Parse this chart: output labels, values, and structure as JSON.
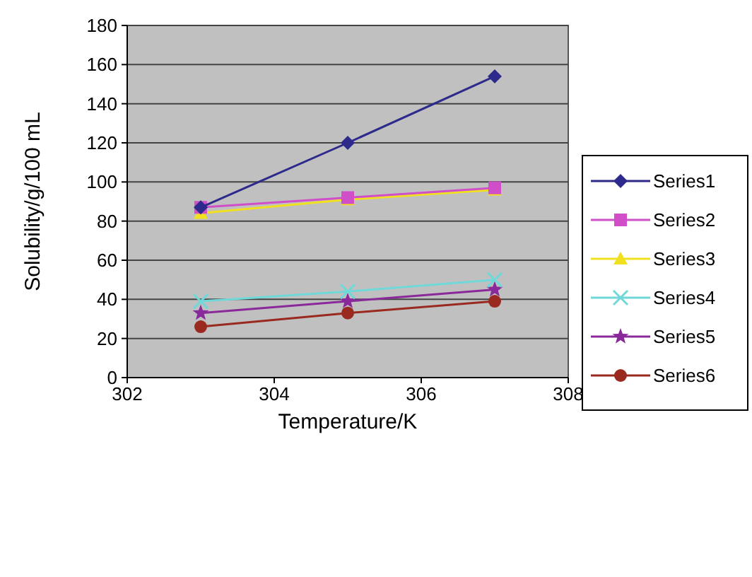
{
  "chart_data": {
    "type": "line",
    "xlabel": "Temperature/K",
    "ylabel": "Solubility/g/100 mL",
    "x": [
      303,
      305,
      307
    ],
    "xlim": [
      302,
      308
    ],
    "xticks": [
      302,
      304,
      306,
      308
    ],
    "ylim": [
      0,
      180
    ],
    "yticks": [
      0,
      20,
      40,
      60,
      80,
      100,
      120,
      140,
      160,
      180
    ],
    "grid": "y",
    "legend": "right",
    "series": [
      {
        "name": "Series1",
        "color": "#2e2a8c",
        "marker": "diamond",
        "values": [
          87,
          120,
          154
        ]
      },
      {
        "name": "Series2",
        "color": "#d04fc8",
        "marker": "square",
        "values": [
          87,
          92,
          97
        ]
      },
      {
        "name": "Series3",
        "color": "#f0e020",
        "marker": "triangle",
        "values": [
          84,
          91,
          96
        ]
      },
      {
        "name": "Series4",
        "color": "#70d8d8",
        "marker": "cross",
        "values": [
          39,
          44,
          50
        ]
      },
      {
        "name": "Series5",
        "color": "#8a2a9a",
        "marker": "star",
        "values": [
          33,
          39,
          45
        ]
      },
      {
        "name": "Series6",
        "color": "#9a2a20",
        "marker": "circle",
        "values": [
          26,
          33,
          39
        ]
      }
    ]
  }
}
